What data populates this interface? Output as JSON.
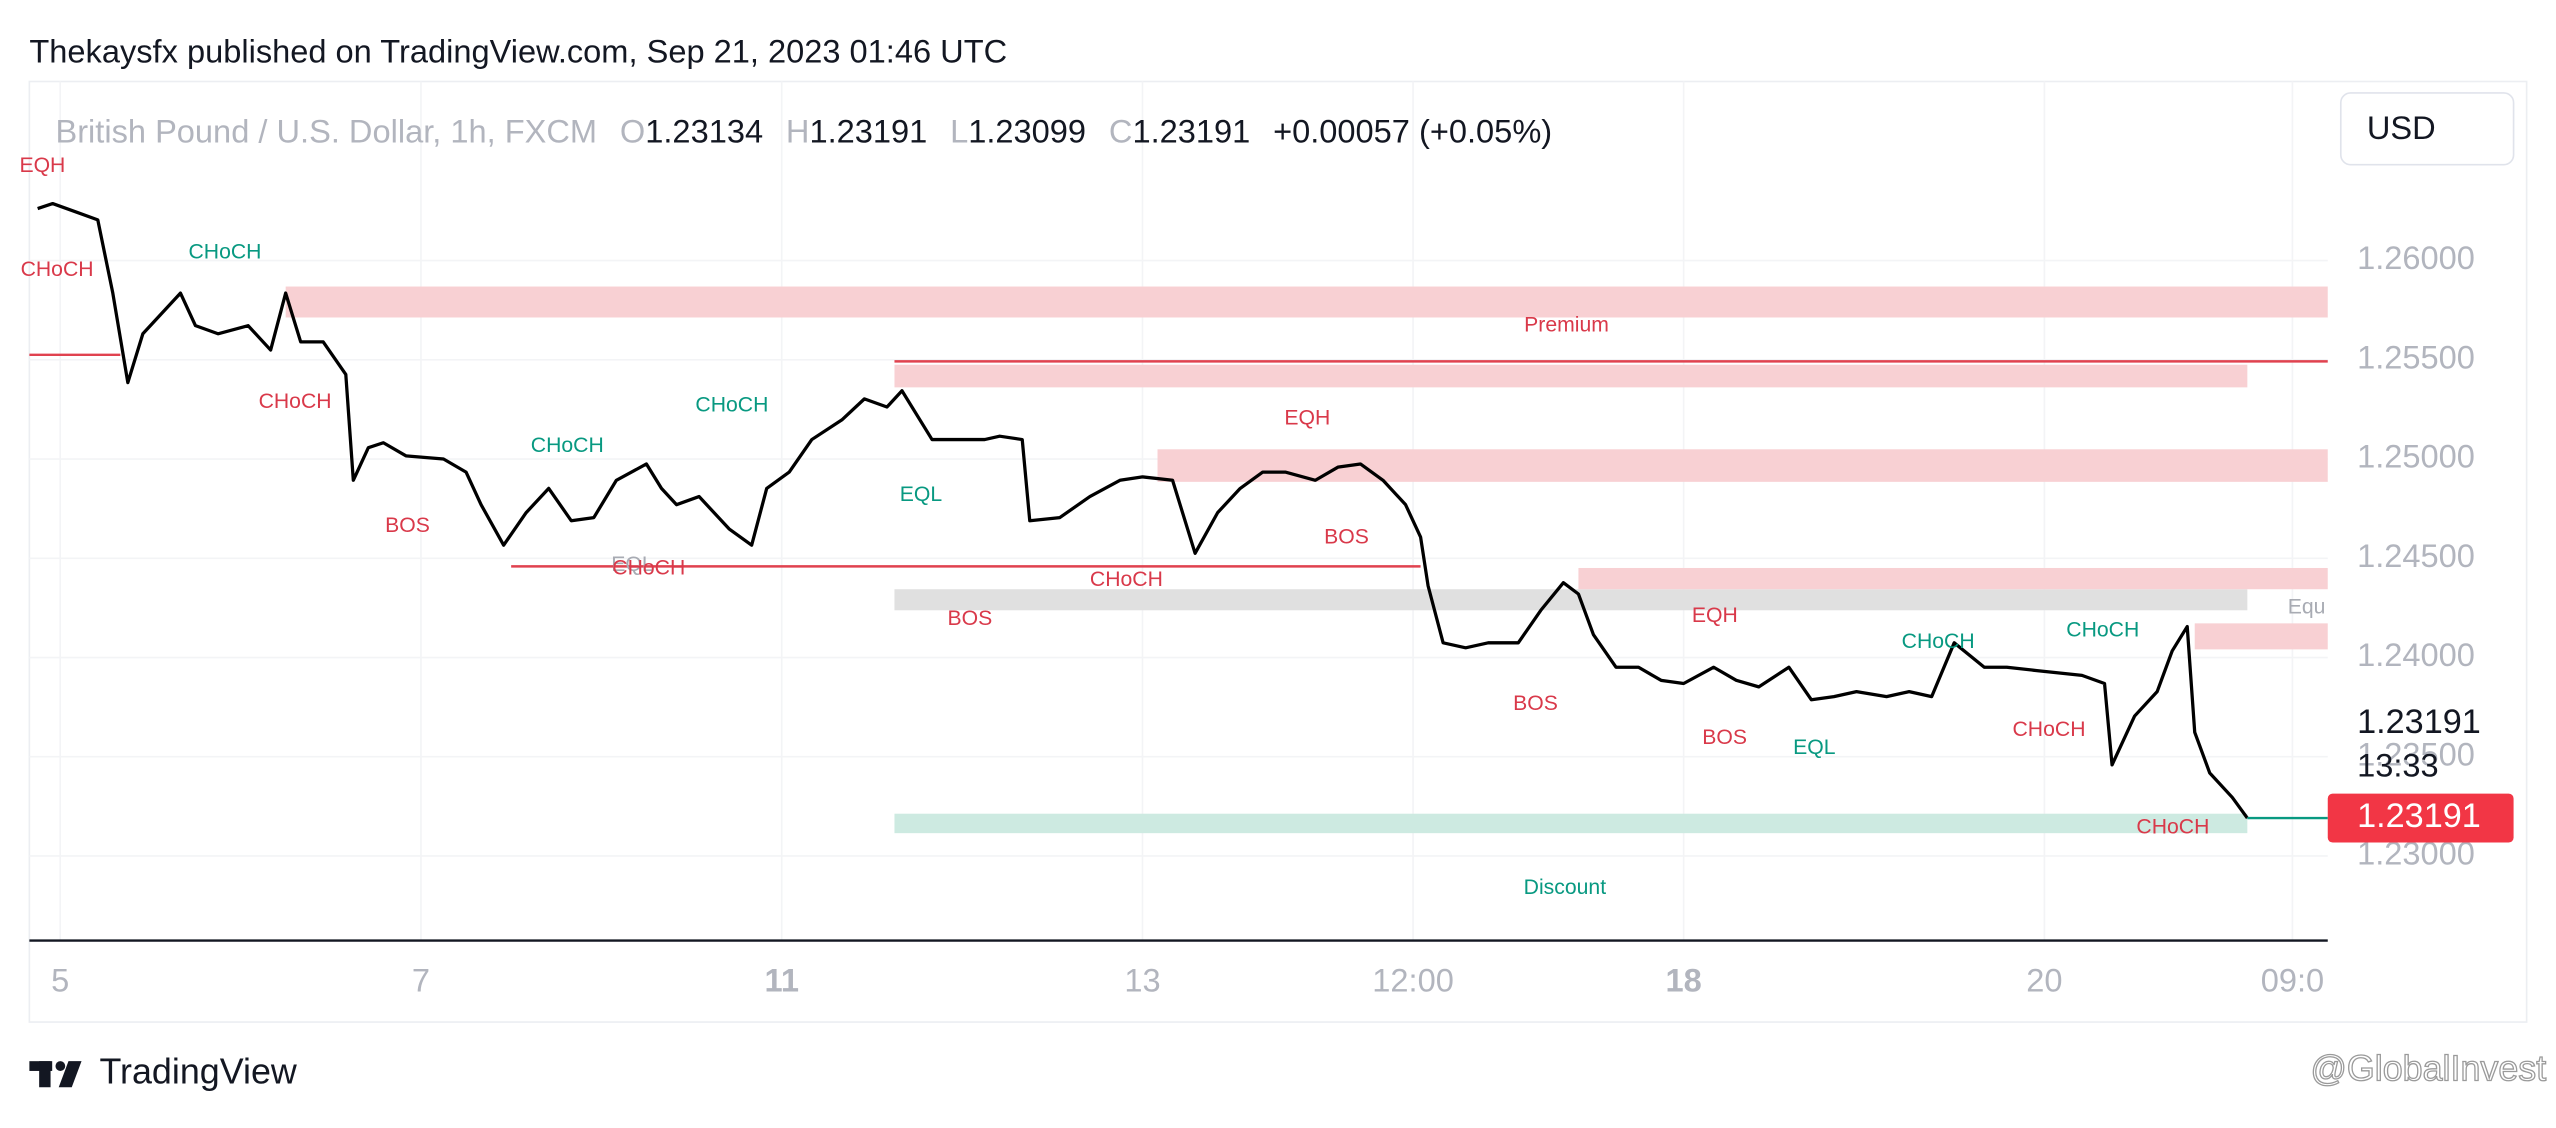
{
  "header": {
    "publisher": "Thekaysfx published on TradingView.com, Sep 21, 2023 01:46 UTC",
    "symbol": "British Pound / U.S. Dollar, 1h, FXCM",
    "ohlc": [
      {
        "key": "O",
        "value": 1.23134
      },
      {
        "key": "H",
        "value": 1.23191
      },
      {
        "key": "L",
        "value": 1.23099
      },
      {
        "key": "C",
        "value": 1.23191
      }
    ],
    "change": "+0.00057 (+0.05%)",
    "currency": "USD"
  },
  "chart_data": {
    "type": "line",
    "color": "#000000",
    "x": [
      -3,
      -1,
      2,
      5,
      7,
      9,
      11,
      14,
      16,
      18,
      21,
      25,
      28,
      30,
      32,
      35,
      38,
      39,
      41,
      43,
      46,
      51,
      54,
      56,
      59,
      62,
      65,
      68,
      71,
      74,
      78,
      80,
      82,
      85,
      89,
      92,
      94,
      97,
      100,
      104,
      107,
      110,
      112,
      116,
      120,
      123,
      125,
      128,
      129,
      133,
      137,
      141,
      144,
      148,
      151,
      154,
      157,
      160,
      163,
      167,
      170,
      173,
      176,
      179,
      181,
      182,
      184,
      187,
      190,
      194,
      197,
      200,
      202,
      204,
      207,
      210,
      213,
      216,
      220,
      223,
      226,
      230,
      233,
      236,
      239,
      243,
      246,
      249,
      252,
      256,
      259,
      263,
      269,
      272,
      273,
      276,
      279,
      281,
      283,
      284,
      286,
      289,
      291
    ],
    "values": [
      1.26262,
      1.26287,
      1.26246,
      1.26205,
      1.25836,
      1.25385,
      1.25631,
      1.25754,
      1.25836,
      1.25672,
      1.25631,
      1.25672,
      1.25549,
      1.25836,
      1.2559,
      1.2559,
      1.25426,
      1.24893,
      1.25057,
      1.25082,
      1.25016,
      1.25,
      1.24934,
      1.2477,
      1.24566,
      1.2473,
      1.24852,
      1.24689,
      1.24705,
      1.24893,
      1.24975,
      1.24852,
      1.2477,
      1.24811,
      1.24648,
      1.24566,
      1.24852,
      1.24934,
      1.25098,
      1.25197,
      1.25303,
      1.25262,
      1.25344,
      1.25098,
      1.25098,
      1.25098,
      1.25115,
      1.25098,
      1.24689,
      1.24705,
      1.24811,
      1.24893,
      1.2491,
      1.24893,
      1.24525,
      1.2473,
      1.24852,
      1.24934,
      1.24934,
      1.24893,
      1.24959,
      1.24975,
      1.24893,
      1.2477,
      1.24607,
      1.24361,
      1.24074,
      1.24049,
      1.24074,
      1.24074,
      1.24238,
      1.24377,
      1.2432,
      1.24115,
      1.23951,
      1.23951,
      1.23885,
      1.23869,
      1.23951,
      1.23885,
      1.23852,
      1.23951,
      1.23787,
      1.23803,
      1.23828,
      1.23803,
      1.23828,
      1.23803,
      1.24074,
      1.23951,
      1.23951,
      1.23934,
      1.2391,
      1.23869,
      1.23459,
      1.23705,
      1.23828,
      1.24033,
      1.24156,
      1.23623,
      1.23418,
      1.23295,
      1.23191
    ],
    "xlim": [
      -4.1,
      301.7
    ],
    "xticks": [
      {
        "value": 0,
        "label": "5"
      },
      {
        "value": 48,
        "label": "7"
      },
      {
        "value": 96,
        "label": "11"
      },
      {
        "value": 144,
        "label": "13"
      },
      {
        "value": 180,
        "label": "12:00"
      },
      {
        "value": 216,
        "label": "18"
      },
      {
        "value": 264,
        "label": "20"
      },
      {
        "value": 297,
        "label": "09:0"
      }
    ],
    "ylim": [
      1.22574,
      1.26902
    ],
    "yticks": [
      {
        "value": 1.23,
        "label": "1.23000"
      },
      {
        "value": 1.235,
        "label": "1.23500"
      },
      {
        "value": 1.24,
        "label": "1.24000"
      },
      {
        "value": 1.245,
        "label": "1.24500"
      },
      {
        "value": 1.25,
        "label": "1.25000"
      },
      {
        "value": 1.255,
        "label": "1.25500"
      },
      {
        "value": 1.26,
        "label": "1.26000"
      }
    ],
    "grid": true,
    "zones": [
      {
        "x": [
          30,
          301.7
        ],
        "y": [
          1.25713,
          1.25869
        ],
        "color": "#f8d0d3"
      },
      {
        "x": [
          111,
          291
        ],
        "y": [
          1.25361,
          1.25475
        ],
        "color": "#f8d0d3"
      },
      {
        "x": [
          146,
          301.7
        ],
        "y": [
          1.24885,
          1.25049
        ],
        "color": "#f8d0d3"
      },
      {
        "x": [
          111,
          291
        ],
        "y": [
          1.24238,
          1.24344
        ],
        "color": "#e0e0e0"
      },
      {
        "x": [
          202,
          301.7
        ],
        "y": [
          1.24344,
          1.24451
        ],
        "color": "#f8d0d3"
      },
      {
        "x": [
          284,
          301.7
        ],
        "y": [
          1.24041,
          1.24172
        ],
        "color": "#f8d0d3"
      },
      {
        "x": [
          111,
          291
        ],
        "y": [
          1.23115,
          1.23213
        ],
        "color": "#cdeae1"
      }
    ],
    "levels": [
      {
        "x": [
          -4.1,
          8
        ],
        "y": 1.25525,
        "color": "#e0424f"
      },
      {
        "x": [
          111,
          301.7
        ],
        "y": 1.25492,
        "color": "#e0424f"
      },
      {
        "x": [
          60,
          181
        ],
        "y": 1.24459,
        "color": "#e0424f"
      }
    ],
    "annotations": [
      "EQH",
      "CHoCH",
      "CHoCH",
      "CHoCH",
      "Premium",
      "BOS",
      "CHoCH",
      "CHoCH",
      "EQL",
      "CHoCH",
      "EQL",
      "EQH",
      "BOS",
      "CHoCH",
      "BOS",
      "EQH",
      "BOS",
      "BOS",
      "EQL",
      "CHoCH",
      "CHoCH",
      "CHoCH",
      "CHoCH",
      "Discount",
      "Equ"
    ],
    "last_price": 1.23191,
    "last_price_color": "#f23645",
    "countdown": "13:33"
  },
  "footer": {
    "brand": "TradingView",
    "watermark": "@GlobalInvest"
  }
}
